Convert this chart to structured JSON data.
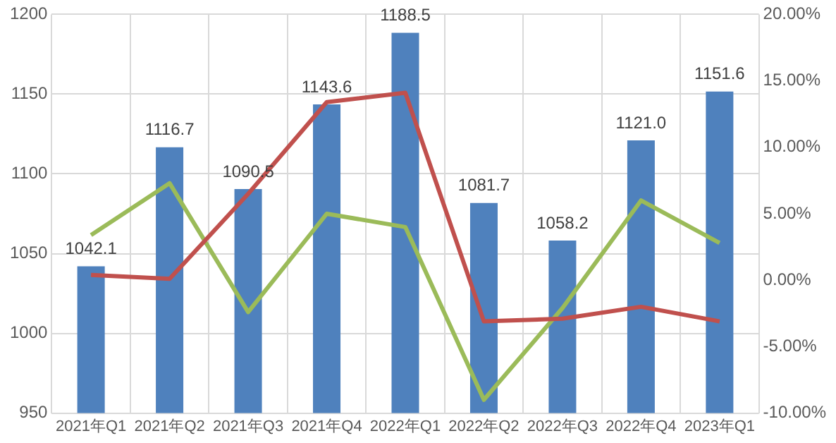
{
  "chart_data": {
    "type": "bar",
    "categories": [
      "2021年Q1",
      "2021年Q2",
      "2021年Q3",
      "2021年Q4",
      "2022年Q1",
      "2022年Q2",
      "2022年Q3",
      "2022年Q4",
      "2023年Q1"
    ],
    "series": [
      {
        "color": "#4f81bd",
        "values": [
          1042.1,
          1116.7,
          1090.5,
          1143.6,
          1188.5,
          1081.7,
          1058.2,
          1121.0,
          1151.6
        ],
        "value_labels": [
          "1042.1",
          "1116.7",
          "1090.5",
          "1143.6",
          "1188.5",
          "1081.7",
          "1058.2",
          "1121.0",
          "1151.6"
        ]
      },
      {
        "type": "line",
        "axis": "y2",
        "color": "#c0504d",
        "values": [
          0.4,
          0.1,
          6.5,
          13.4,
          14.1,
          -3.1,
          -2.9,
          -2.0,
          -3.1
        ]
      },
      {
        "type": "line",
        "axis": "y2",
        "color": "#9bbb59",
        "values": [
          3.4,
          7.3,
          -2.4,
          5.0,
          4.0,
          -9.0,
          -2.1,
          6.0,
          2.8
        ]
      }
    ],
    "ylim": [
      950,
      1200
    ],
    "yticks": [
      950,
      1000,
      1050,
      1100,
      1150,
      1200
    ],
    "y2lim": [
      -10,
      20
    ],
    "y2ticks": [
      {
        "value": -10,
        "label": "-10.00%"
      },
      {
        "value": -5,
        "label": "-5.00%"
      },
      {
        "value": 0,
        "label": "0.00%"
      },
      {
        "value": 5,
        "label": "5.00%"
      },
      {
        "value": 10,
        "label": "10.00%"
      },
      {
        "value": 15,
        "label": "15.00%"
      },
      {
        "value": 20,
        "label": "20.00%"
      }
    ],
    "grid": true,
    "legend": false,
    "marker": "none",
    "line_style": "solid"
  }
}
